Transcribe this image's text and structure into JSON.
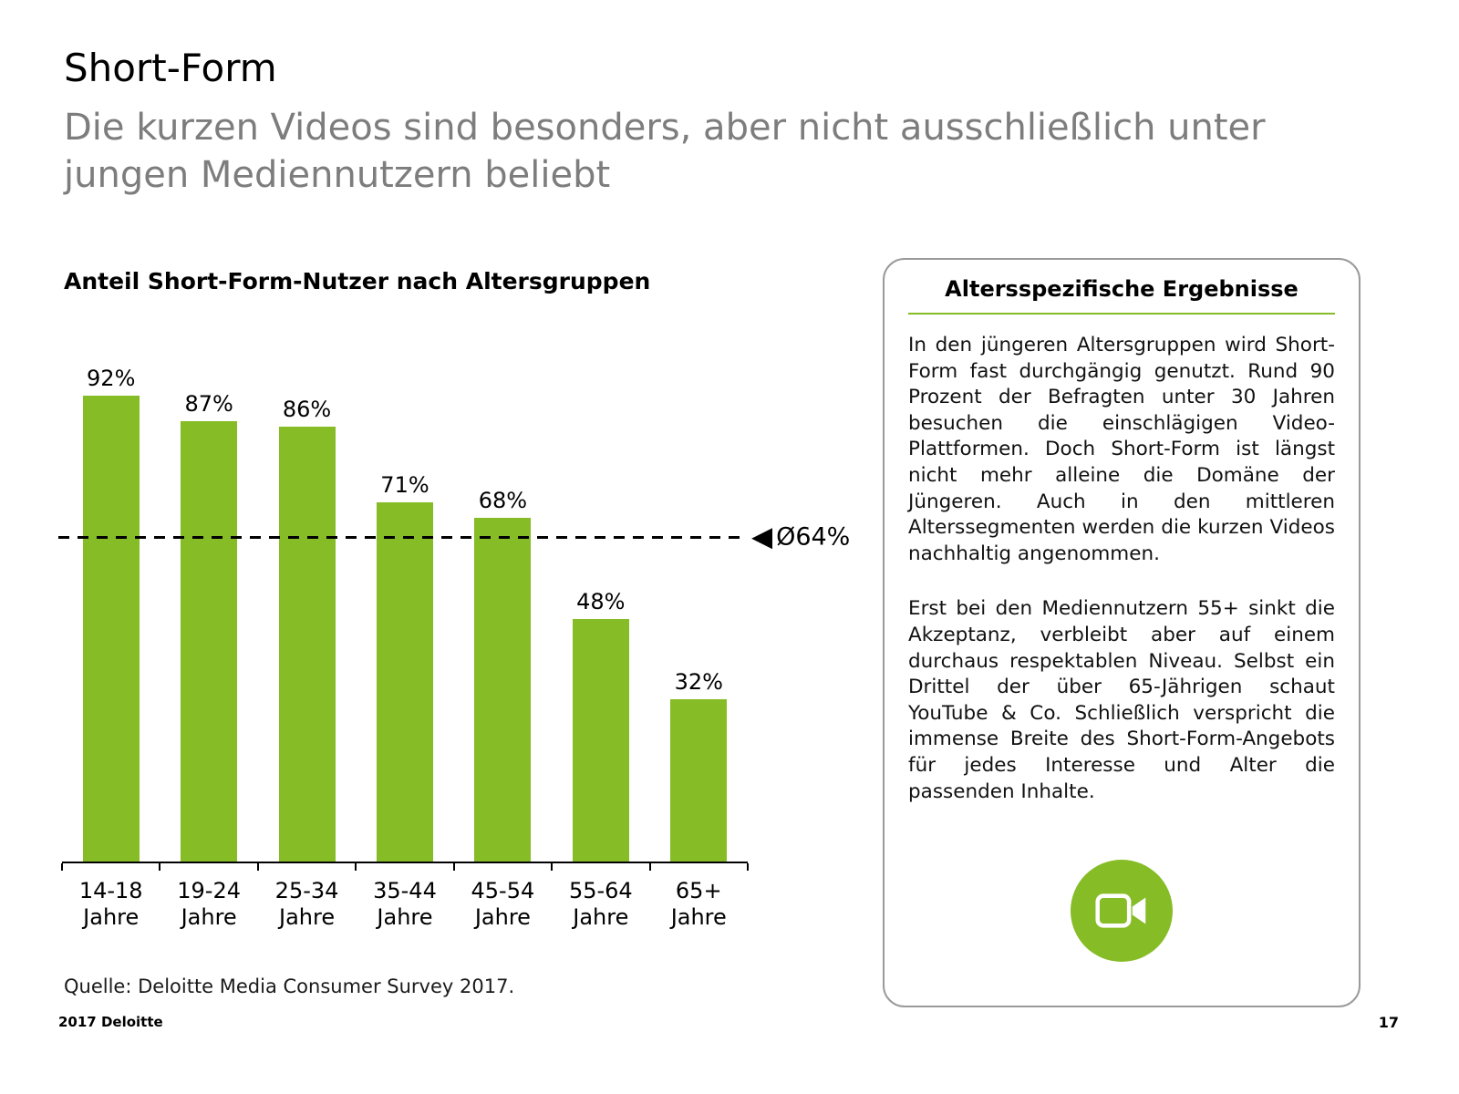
{
  "header": {
    "title": "Short-Form",
    "subtitle": "Die kurzen Videos sind besonders, aber nicht ausschließlich unter jungen Mediennutzern beliebt"
  },
  "chart": {
    "title": "Anteil Short-Form-Nutzer nach Altersgruppen",
    "source": "Quelle: Deloitte Media Consumer Survey 2017."
  },
  "chart_data": {
    "type": "bar",
    "title": "Anteil Short-Form-Nutzer nach Altersgruppen",
    "categories": [
      "14-18 Jahre",
      "19-24 Jahre",
      "25-34 Jahre",
      "35-44 Jahre",
      "45-54 Jahre",
      "55-64 Jahre",
      "65+ Jahre"
    ],
    "values": [
      92,
      87,
      86,
      71,
      68,
      48,
      32
    ],
    "value_labels": [
      "92%",
      "87%",
      "86%",
      "71%",
      "68%",
      "48%",
      "32%"
    ],
    "unit": "%",
    "average": 64,
    "average_label": "Ø64%",
    "bar_color": "#86BC25",
    "ylim": [
      0,
      100
    ],
    "grid": false,
    "legend": "none"
  },
  "info_box": {
    "title": "Altersspezifische Ergebnisse",
    "paragraphs": [
      "In den jüngeren Altersgruppen wird Short-Form fast durchgängig genutzt. Rund 90 Prozent der Befragten unter 30 Jahren besuchen die einschlägigen Video-Plattformen. Doch Short-Form ist längst nicht mehr alleine die Domäne der Jüngeren. Auch in den mittleren Alterssegmenten werden die kurzen Videos nachhaltig angenommen.",
      "Erst bei den Mediennutzern 55+ sinkt die Akzeptanz, verbleibt aber auf einem durchaus respektablen Niveau. Selbst ein Drittel der über 65-Jährigen schaut YouTube & Co. Schließlich verspricht die immense Breite des Short-Form-Angebots für jedes Interesse und Alter die passenden Inhalte."
    ],
    "icon": "video-camera-icon"
  },
  "footer": {
    "left": "2017 Deloitte",
    "page": "17"
  },
  "colors": {
    "green": "#86BC25",
    "subtitle_gray": "#7d7d7d",
    "box_border": "#9a9a9a",
    "axis_black": "#000000"
  }
}
